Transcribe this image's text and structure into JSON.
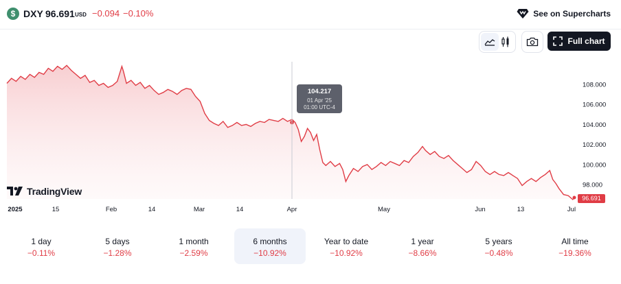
{
  "symbol": {
    "icon_glyph": "$",
    "name": "DXY",
    "price": "96.691",
    "currency": "USD",
    "change": "−0.094",
    "change_pct": "−0.10%"
  },
  "header": {
    "supercharts_label": "See on Supercharts",
    "supercharts_icon": "supercharts-gem-icon"
  },
  "toolbar": {
    "area_icon": "area-chart-icon",
    "candle_icon": "candles-icon",
    "camera_icon": "camera-icon",
    "full_chart_label": "Full chart",
    "full_chart_icon": "expand-icon"
  },
  "tooltip": {
    "value": "104.217",
    "date": "01 Apr '25",
    "time": "01:00 UTC-4"
  },
  "last_price_tag": "96.691",
  "branding": {
    "name": "TradingView"
  },
  "colors": {
    "line": "#e03c45",
    "up_down": "#e03c45",
    "fill_top": "#f7c9cc",
    "accent_dark": "#131722"
  },
  "chart_data": {
    "type": "area",
    "y_ticks": [
      "108.000",
      "106.000",
      "104.000",
      "102.000",
      "100.000",
      "98.000"
    ],
    "x_ticks": [
      "2025",
      "15",
      "Feb",
      "14",
      "Mar",
      "14",
      "Apr",
      "May",
      "Jun",
      "13",
      "Jul"
    ],
    "ylim": [
      96.0,
      110.2
    ],
    "grid": false,
    "series": [
      {
        "values": [
          [
            0,
            108.1
          ],
          [
            3,
            108.6
          ],
          [
            6,
            108.3
          ],
          [
            9,
            108.8
          ],
          [
            12,
            108.5
          ],
          [
            15,
            109.0
          ],
          [
            18,
            108.7
          ],
          [
            21,
            109.2
          ],
          [
            24,
            109.0
          ],
          [
            27,
            109.6
          ],
          [
            30,
            109.3
          ],
          [
            33,
            109.8
          ],
          [
            36,
            109.5
          ],
          [
            39,
            109.9
          ],
          [
            42,
            109.4
          ],
          [
            45,
            109.0
          ],
          [
            48,
            108.6
          ],
          [
            51,
            108.9
          ],
          [
            54,
            108.2
          ],
          [
            57,
            108.4
          ],
          [
            60,
            107.9
          ],
          [
            63,
            108.1
          ],
          [
            66,
            107.7
          ],
          [
            69,
            107.9
          ],
          [
            72,
            108.3
          ],
          [
            75,
            109.8
          ],
          [
            76,
            109.3
          ],
          [
            78,
            108.1
          ],
          [
            81,
            108.4
          ],
          [
            84,
            107.9
          ],
          [
            87,
            108.2
          ],
          [
            90,
            107.6
          ],
          [
            93,
            107.9
          ],
          [
            96,
            107.4
          ],
          [
            99,
            107.0
          ],
          [
            102,
            107.2
          ],
          [
            105,
            107.5
          ],
          [
            108,
            107.3
          ],
          [
            111,
            107.0
          ],
          [
            114,
            107.4
          ],
          [
            117,
            107.6
          ],
          [
            120,
            107.5
          ],
          [
            123,
            106.8
          ],
          [
            126,
            106.3
          ],
          [
            129,
            105.1
          ],
          [
            132,
            104.4
          ],
          [
            135,
            104.1
          ],
          [
            138,
            103.9
          ],
          [
            141,
            104.3
          ],
          [
            144,
            103.7
          ],
          [
            147,
            103.9
          ],
          [
            150,
            104.2
          ],
          [
            153,
            103.9
          ],
          [
            156,
            104.0
          ],
          [
            159,
            103.8
          ],
          [
            162,
            104.1
          ],
          [
            165,
            104.3
          ],
          [
            168,
            104.2
          ],
          [
            171,
            104.5
          ],
          [
            174,
            104.4
          ],
          [
            177,
            104.3
          ],
          [
            180,
            104.6
          ],
          [
            183,
            104.3
          ],
          [
            186,
            104.5
          ],
          [
            188,
            104.2
          ],
          [
            190,
            103.5
          ],
          [
            192,
            102.3
          ],
          [
            194,
            102.8
          ],
          [
            196,
            103.6
          ],
          [
            198,
            103.2
          ],
          [
            200,
            102.4
          ],
          [
            202,
            103.0
          ],
          [
            204,
            101.5
          ],
          [
            206,
            100.2
          ],
          [
            208,
            99.9
          ],
          [
            211,
            100.3
          ],
          [
            214,
            99.8
          ],
          [
            217,
            100.1
          ],
          [
            219,
            99.5
          ],
          [
            221,
            98.3
          ],
          [
            223,
            98.9
          ],
          [
            226,
            99.6
          ],
          [
            229,
            99.3
          ],
          [
            232,
            99.8
          ],
          [
            235,
            100.0
          ],
          [
            238,
            99.5
          ],
          [
            241,
            99.8
          ],
          [
            244,
            100.2
          ],
          [
            247,
            99.9
          ],
          [
            250,
            100.3
          ],
          [
            253,
            100.1
          ],
          [
            256,
            99.9
          ],
          [
            259,
            100.4
          ],
          [
            262,
            100.2
          ],
          [
            265,
            100.8
          ],
          [
            268,
            101.2
          ],
          [
            271,
            101.8
          ],
          [
            273,
            101.4
          ],
          [
            276,
            101.0
          ],
          [
            279,
            101.3
          ],
          [
            282,
            100.8
          ],
          [
            285,
            100.6
          ],
          [
            288,
            100.9
          ],
          [
            291,
            100.4
          ],
          [
            294,
            100.0
          ],
          [
            297,
            99.6
          ],
          [
            300,
            99.2
          ],
          [
            303,
            99.5
          ],
          [
            306,
            100.3
          ],
          [
            309,
            99.9
          ],
          [
            312,
            99.3
          ],
          [
            315,
            99.0
          ],
          [
            318,
            99.3
          ],
          [
            321,
            99.0
          ],
          [
            324,
            98.9
          ],
          [
            327,
            99.2
          ],
          [
            330,
            98.9
          ],
          [
            333,
            98.6
          ],
          [
            336,
            97.9
          ],
          [
            339,
            98.3
          ],
          [
            342,
            98.6
          ],
          [
            345,
            98.3
          ],
          [
            348,
            98.7
          ],
          [
            351,
            99.0
          ],
          [
            354,
            99.4
          ],
          [
            356,
            98.5
          ],
          [
            358,
            98.1
          ],
          [
            360,
            97.6
          ],
          [
            363,
            97.0
          ],
          [
            366,
            96.9
          ],
          [
            369,
            96.5
          ],
          [
            370,
            96.7
          ]
        ]
      }
    ]
  },
  "ranges": [
    {
      "label": "1 day",
      "value": "−0.11%",
      "active": false
    },
    {
      "label": "5 days",
      "value": "−1.28%",
      "active": false
    },
    {
      "label": "1 month",
      "value": "−2.59%",
      "active": false
    },
    {
      "label": "6 months",
      "value": "−10.92%",
      "active": true
    },
    {
      "label": "Year to date",
      "value": "−10.92%",
      "active": false
    },
    {
      "label": "1 year",
      "value": "−8.66%",
      "active": false
    },
    {
      "label": "5 years",
      "value": "−0.48%",
      "active": false
    },
    {
      "label": "All time",
      "value": "−19.36%",
      "active": false
    }
  ]
}
